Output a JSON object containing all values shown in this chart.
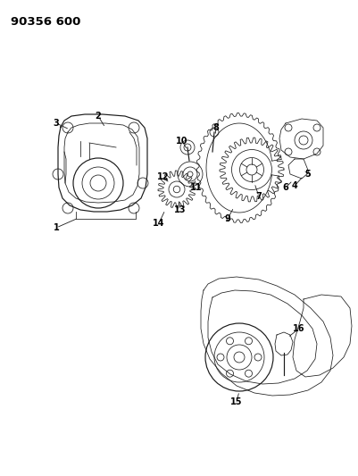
{
  "title": "90356 600",
  "background_color": "#ffffff",
  "line_color": "#1a1a1a",
  "label_color": "#000000",
  "fig_width": 4.02,
  "fig_height": 5.33,
  "dpi": 100,
  "header_fontsize": 9.5,
  "label_fontsize": 7.0,
  "lw_thin": 0.55,
  "lw_med": 0.85,
  "lw_thick": 1.1
}
